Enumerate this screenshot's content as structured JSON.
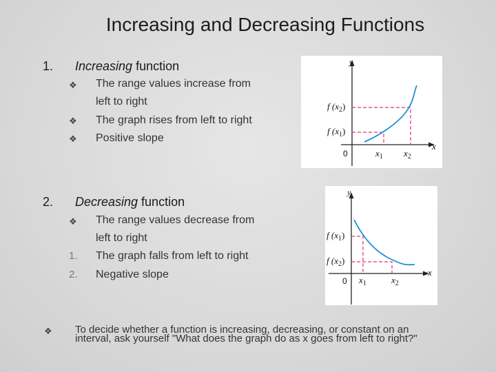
{
  "slide": {
    "title": "Increasing and Decreasing Functions",
    "section1": {
      "number": "1.",
      "heading_italic": "Increasing",
      "heading_rest": " function",
      "bullet_icon": "diamond-bullet-icon",
      "bullets": [
        "The range values increase from",
        "left to right",
        "The graph rises from left to right",
        "Positive slope"
      ]
    },
    "section2": {
      "number": "2.",
      "heading_italic": "Decreasing",
      "heading_rest": " function",
      "bullet_icon": "diamond-bullet-icon",
      "bullets": [
        "The range values decrease from",
        "left to right",
        "The graph falls from left to right",
        "Negative slope"
      ],
      "sub_numbers": [
        "1.",
        "2."
      ]
    },
    "footnote": {
      "line1": "To decide whether a function is increasing, decreasing, or constant on an",
      "line2": "interval, ask yourself  \"What does the graph do as x goes from left to right?\""
    },
    "graph_increasing": {
      "y_axis": "y",
      "x_axis": "x",
      "origin": "0",
      "x1": "x",
      "x1_sub": "1",
      "x2": "x",
      "x2_sub": "2",
      "fx2_pre": "f (x",
      "fx2_sub": "2",
      "fx2_post": ")",
      "fx1_pre": "f (x",
      "fx1_sub": "1",
      "fx1_post": ")",
      "curve_color": "#1f8fd6",
      "guide_color": "#e0307a"
    },
    "graph_decreasing": {
      "y_axis": "y",
      "x_axis": "x",
      "origin": "0",
      "x1": "x",
      "x1_sub": "1",
      "x2": "x",
      "x2_sub": "2",
      "fx1_pre": "f (x",
      "fx1_sub": "1",
      "fx1_post": ")",
      "fx2_pre": "f (x",
      "fx2_sub": "2",
      "fx2_post": ")",
      "curve_color": "#1f8fd6",
      "guide_color": "#e0307a"
    }
  }
}
